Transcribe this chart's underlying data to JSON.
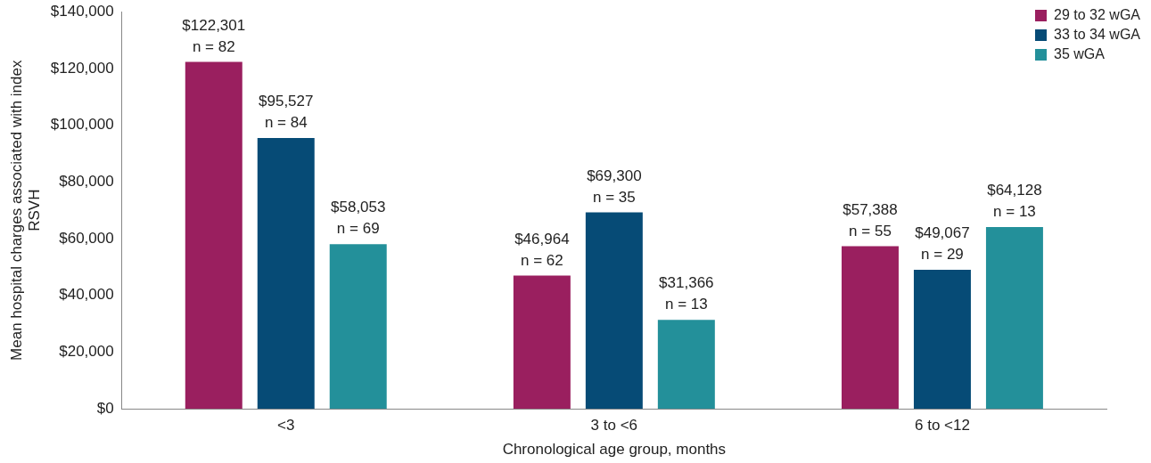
{
  "chart_data": {
    "type": "bar",
    "xlabel": "Chronological age group, months",
    "ylabel": "Mean hospital charges associated with index RSVH",
    "categories": [
      "<3",
      "3 to <6",
      "6 to <12"
    ],
    "series": [
      {
        "name": "29 to 32 wGA",
        "color": "#9a1f5f",
        "values": [
          122301,
          46964,
          57388
        ],
        "value_labels": [
          "$122,301\nn = 82",
          "$46,964\nn = 62",
          "$57,388\nn = 55"
        ]
      },
      {
        "name": "33 to 34 wGA",
        "color": "#064b76",
        "values": [
          95527,
          69300,
          49067
        ],
        "value_labels": [
          "$95,527\nn = 84",
          "$69,300\nn = 35",
          "$49,067\nn = 29"
        ]
      },
      {
        "name": "35 wGA",
        "color": "#23909a",
        "values": [
          58053,
          31366,
          64128
        ],
        "value_labels": [
          "$58,053\nn = 69",
          "$31,366\nn = 13",
          "$64,128\nn = 13"
        ]
      }
    ],
    "ylim": [
      0,
      140000
    ],
    "yticks": [
      {
        "value": 0,
        "label": "$0"
      },
      {
        "value": 20000,
        "label": "$20,000"
      },
      {
        "value": 40000,
        "label": "$40,000"
      },
      {
        "value": 60000,
        "label": "$60,000"
      },
      {
        "value": 80000,
        "label": "$80,000"
      },
      {
        "value": 100000,
        "label": "$100,000"
      },
      {
        "value": 120000,
        "label": "$120,000"
      },
      {
        "value": 140000,
        "label": "$140,000"
      }
    ],
    "grid": false,
    "legend": "top right"
  }
}
